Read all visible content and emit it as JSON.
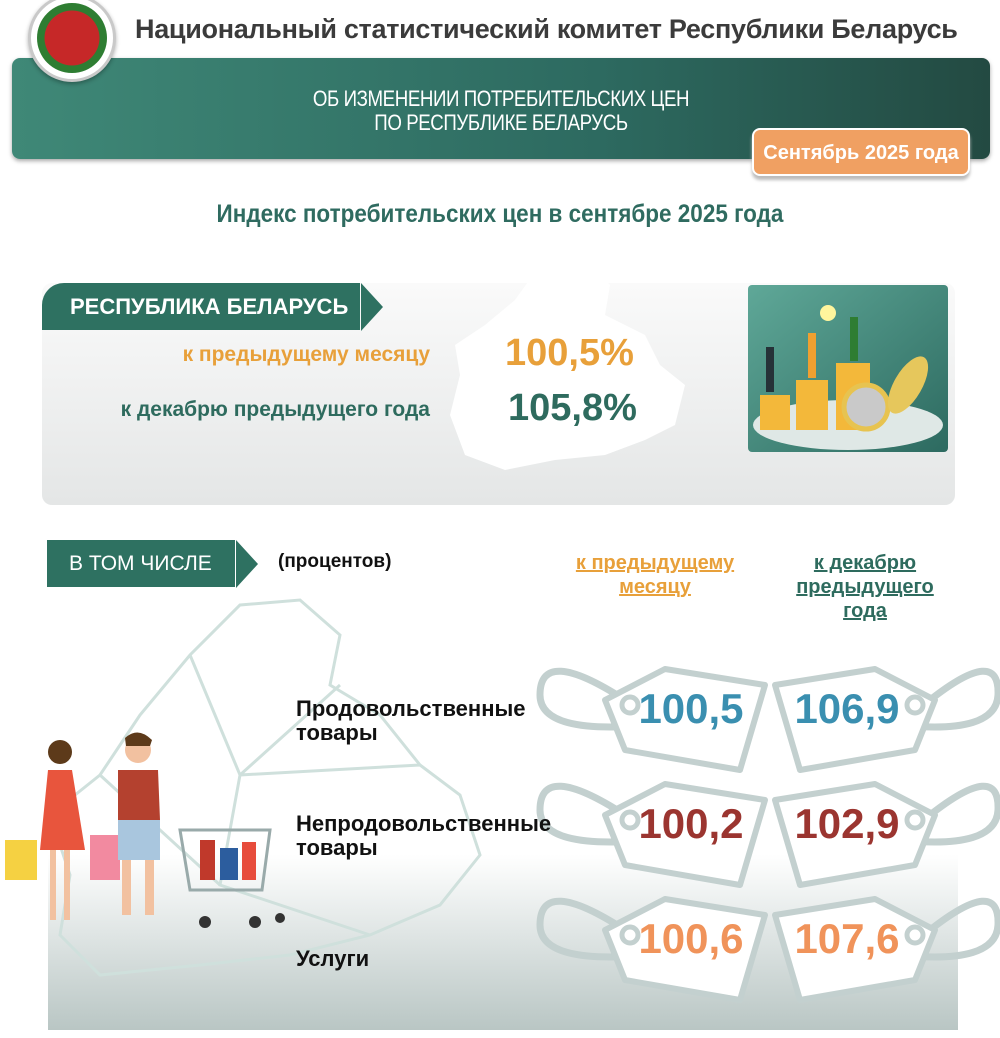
{
  "header": {
    "organization": "Национальный статистический комитет Республики Беларусь",
    "banner_line1": "ОБ ИЗМЕНЕНИИ ПОТРЕБИТЕЛЬСКИХ ЦЕН",
    "banner_line2": "ПО РЕСПУБЛИКЕ БЕЛАРУСЬ",
    "period_badge": "Сентябрь 2025 года"
  },
  "subtitle": "Индекс потребительских цен в сентябре 2025 года",
  "republic": {
    "ribbon": "РЕСПУБЛИКА БЕЛАРУСЬ",
    "prev_month_label": "к предыдущему месяцу",
    "prev_month_value": "100,5%",
    "dec_label": "к декабрю предыдущего года",
    "dec_value": "105,8%"
  },
  "breakdown": {
    "ribbon": "В ТОМ ЧИСЛЕ",
    "unit": "(процентов)",
    "col_prev_month": [
      "к предыдущему",
      "месяцу"
    ],
    "col_dec": [
      "к декабрю",
      "предыдущего",
      "года"
    ],
    "rows": [
      {
        "label": [
          "Продовольственные",
          "товары"
        ],
        "prev": "100,5",
        "dec": "106,9",
        "color": "#3a8fb0"
      },
      {
        "label": [
          "Непродовольственные",
          "товары"
        ],
        "prev": "100,2",
        "dec": "102,9",
        "color": "#9b3530"
      },
      {
        "label": [
          "Услуги"
        ],
        "prev": "100,6",
        "dec": "107,6",
        "color": "#f0935a"
      }
    ]
  },
  "colors": {
    "green": "#2e7161",
    "orange": "#e8a03a",
    "banner": "#2d6a60",
    "badge": "#f0a062"
  }
}
